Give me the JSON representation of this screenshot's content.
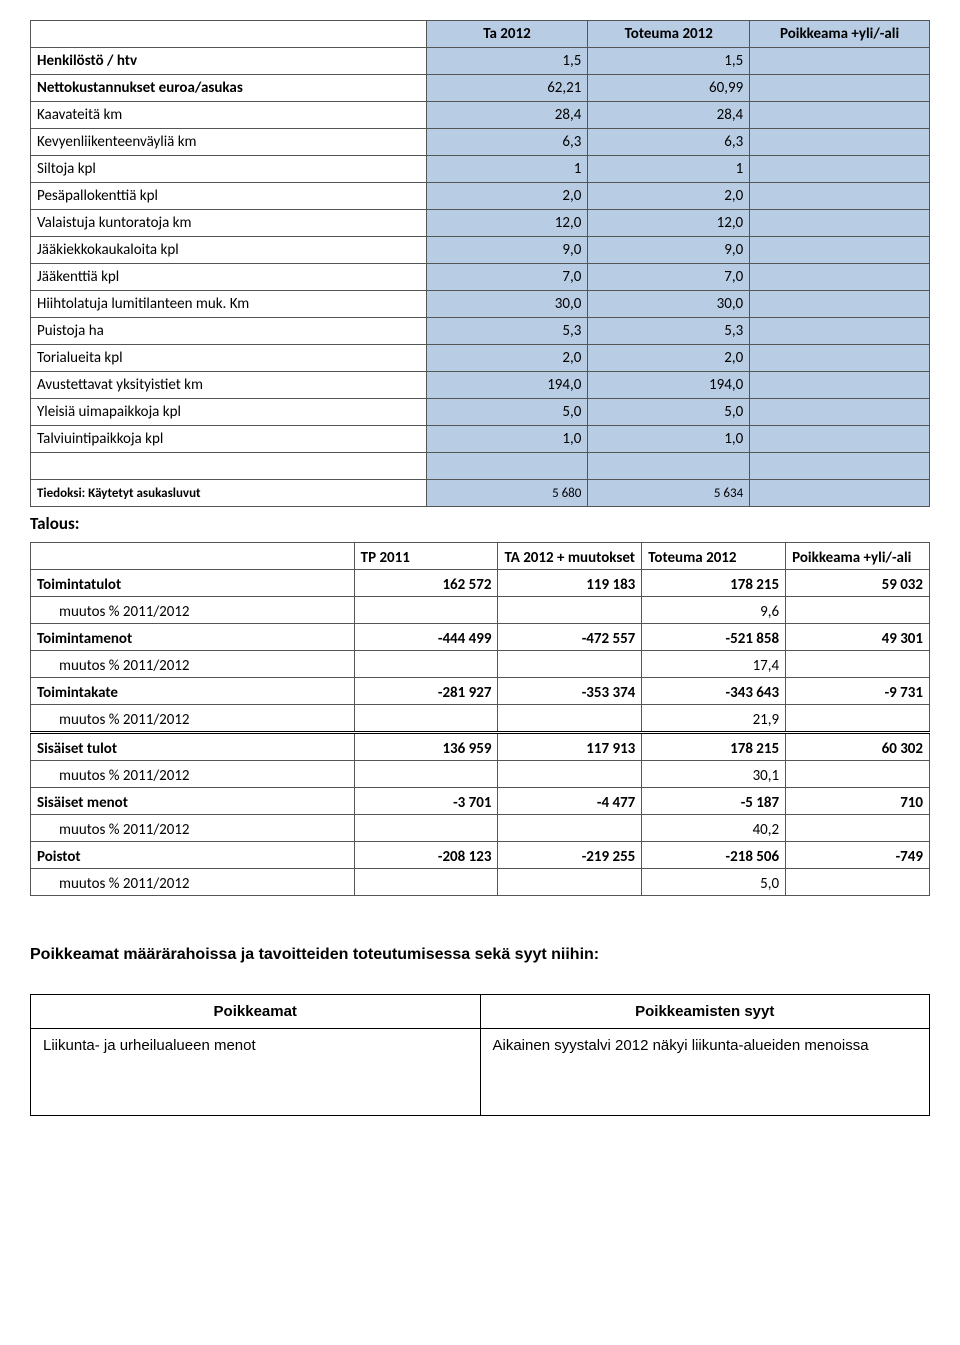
{
  "table1": {
    "headers": [
      "Ta 2012",
      "Toteuma 2012",
      "Poikkeama +yli/-ali"
    ],
    "rows": [
      {
        "label": "Henkilöstö / htv",
        "bold": true,
        "c1": "1,5",
        "c2": "1,5",
        "c3": ""
      },
      {
        "label": "Nettokustannukset euroa/asukas",
        "bold": true,
        "c1": "62,21",
        "c2": "60,99",
        "c3": ""
      },
      {
        "label": "Kaavateitä km",
        "bold": false,
        "c1": "28,4",
        "c2": "28,4",
        "c3": ""
      },
      {
        "label": "Kevyenliikenteenväyliä km",
        "bold": false,
        "c1": "6,3",
        "c2": "6,3",
        "c3": ""
      },
      {
        "label": "Siltoja kpl",
        "bold": false,
        "c1": "1",
        "c2": "1",
        "c3": ""
      },
      {
        "label": "Pesäpallokenttiä kpl",
        "bold": false,
        "c1": "2,0",
        "c2": "2,0",
        "c3": ""
      },
      {
        "label": "Valaistuja kuntoratoja km",
        "bold": false,
        "c1": "12,0",
        "c2": "12,0",
        "c3": ""
      },
      {
        "label": "Jääkiekkokaukaloita kpl",
        "bold": false,
        "c1": "9,0",
        "c2": "9,0",
        "c3": ""
      },
      {
        "label": "Jääkenttiä kpl",
        "bold": false,
        "c1": "7,0",
        "c2": "7,0",
        "c3": ""
      },
      {
        "label": "Hiihtolatuja lumitilanteen muk. Km",
        "bold": false,
        "c1": "30,0",
        "c2": "30,0",
        "c3": ""
      },
      {
        "label": "Puistoja ha",
        "bold": false,
        "c1": "5,3",
        "c2": "5,3",
        "c3": ""
      },
      {
        "label": "Torialueita kpl",
        "bold": false,
        "c1": "2,0",
        "c2": "2,0",
        "c3": ""
      },
      {
        "label": "Avustettavat yksityistiet km",
        "bold": false,
        "c1": "194,0",
        "c2": "194,0",
        "c3": ""
      },
      {
        "label": "Yleisiä uimapaikkoja kpl",
        "bold": false,
        "c1": "5,0",
        "c2": "5,0",
        "c3": ""
      },
      {
        "label": "Talviuintipaikkoja kpl",
        "bold": false,
        "c1": "1,0",
        "c2": "1,0",
        "c3": ""
      }
    ],
    "footer": {
      "label": "Tiedoksi: Käytetyt asukasluvut",
      "c1": "5 680",
      "c2": "5 634",
      "c3": ""
    }
  },
  "talous_label": "Talous:",
  "table2": {
    "headers": [
      "",
      "TP 2011",
      "TA 2012 + muutokset",
      "Toteuma 2012",
      "Poikkeama +yli/-ali"
    ],
    "rows": [
      {
        "label": "Toimintatulot",
        "bold": true,
        "indent": false,
        "c1": "162 572",
        "c2": "119 183",
        "c3": "178 215",
        "c4": "59 032",
        "thick": false
      },
      {
        "label": "muutos % 2011/2012",
        "bold": false,
        "indent": true,
        "c1": "",
        "c2": "",
        "c3": "9,6",
        "c4": "",
        "thick": false
      },
      {
        "label": "Toimintamenot",
        "bold": true,
        "indent": false,
        "c1": "-444 499",
        "c2": "-472 557",
        "c3": "-521 858",
        "c4": "49 301",
        "thick": false
      },
      {
        "label": "muutos % 2011/2012",
        "bold": false,
        "indent": true,
        "c1": "",
        "c2": "",
        "c3": "17,4",
        "c4": "",
        "thick": false
      },
      {
        "label": "Toimintakate",
        "bold": true,
        "indent": false,
        "c1": "-281 927",
        "c2": "-353 374",
        "c3": "-343 643",
        "c4": "-9 731",
        "thick": false
      },
      {
        "label": "muutos % 2011/2012",
        "bold": false,
        "indent": true,
        "c1": "",
        "c2": "",
        "c3": "21,9",
        "c4": "",
        "thick": true
      },
      {
        "label": "Sisäiset tulot",
        "bold": true,
        "indent": false,
        "c1": "136 959",
        "c2": "117 913",
        "c3": "178 215",
        "c4": "60 302",
        "thick": false
      },
      {
        "label": "muutos % 2011/2012",
        "bold": false,
        "indent": true,
        "c1": "",
        "c2": "",
        "c3": "30,1",
        "c4": "",
        "thick": false
      },
      {
        "label": "Sisäiset menot",
        "bold": true,
        "indent": false,
        "c1": "-3 701",
        "c2": "-4 477",
        "c3": "-5 187",
        "c4": "710",
        "thick": false
      },
      {
        "label": "muutos % 2011/2012",
        "bold": false,
        "indent": true,
        "c1": "",
        "c2": "",
        "c3": "40,2",
        "c4": "",
        "thick": false
      },
      {
        "label": "Poistot",
        "bold": true,
        "indent": false,
        "c1": "-208 123",
        "c2": "-219 255",
        "c3": "-218 506",
        "c4": "-749",
        "thick": false
      },
      {
        "label": "muutos % 2011/2012",
        "bold": false,
        "indent": true,
        "c1": "",
        "c2": "",
        "c3": "5,0",
        "c4": "",
        "thick": false
      }
    ]
  },
  "section_heading": "Poikkeamat määrärahoissa ja tavoitteiden toteutumisessa sekä syyt niihin:",
  "table3": {
    "headers": [
      "Poikkeamat",
      "Poikkeamisten syyt"
    ],
    "rows": [
      {
        "c1": "Liikunta- ja urheilualueen menot",
        "c2": "Aikainen syystalvi 2012 näkyi liikunta-alueiden menoissa"
      }
    ]
  },
  "colors": {
    "header_blue": "#b8cce4",
    "border": "#555555"
  }
}
